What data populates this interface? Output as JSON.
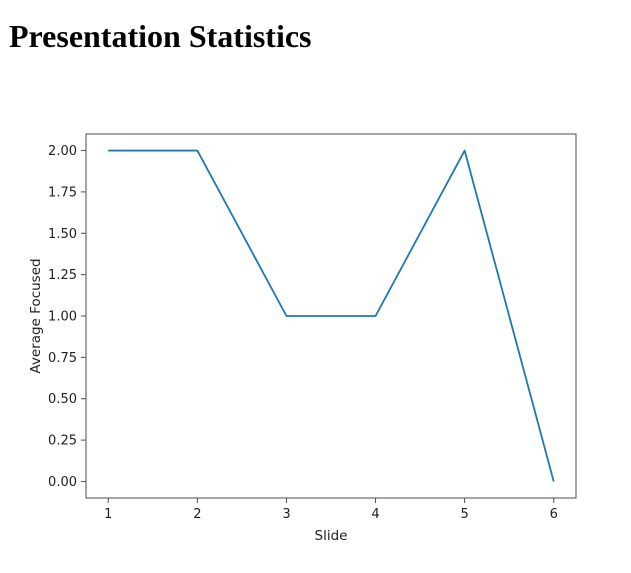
{
  "page": {
    "title": "Presentation Statistics"
  },
  "chart_data": {
    "type": "line",
    "title": "",
    "xlabel": "Slide",
    "ylabel": "Average Focused",
    "x": [
      1,
      2,
      3,
      4,
      5,
      6
    ],
    "series": [
      {
        "name": "Average Focused",
        "values": [
          2,
          2,
          1,
          1,
          2,
          0
        ],
        "color": "#1f77b4"
      }
    ],
    "x_ticks": [
      1,
      2,
      3,
      4,
      5,
      6
    ],
    "x_tick_labels": [
      "1",
      "2",
      "3",
      "4",
      "5",
      "6"
    ],
    "y_ticks": [
      0.0,
      0.25,
      0.5,
      0.75,
      1.0,
      1.25,
      1.5,
      1.75,
      2.0
    ],
    "y_tick_labels": [
      "0.00",
      "0.25",
      "0.50",
      "0.75",
      "1.00",
      "1.25",
      "1.50",
      "1.75",
      "2.00"
    ],
    "xlim": [
      0.75,
      6.25
    ],
    "ylim": [
      -0.1,
      2.1
    ],
    "grid": false,
    "legend_position": "none",
    "spine_color": "#4d4d4d",
    "tick_color": "#4d4d4d",
    "text_color": "#1f1f1f"
  }
}
